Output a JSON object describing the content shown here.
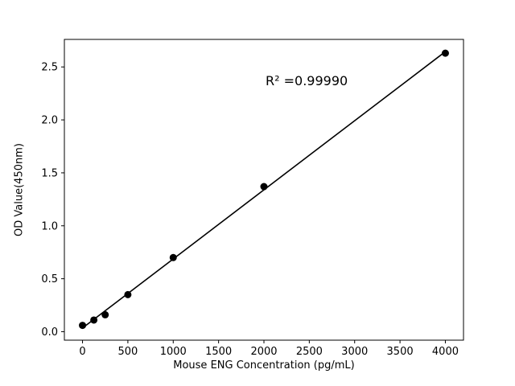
{
  "chart_data": {
    "type": "scatter",
    "x": [
      0,
      125,
      250,
      500,
      1000,
      2000,
      4000
    ],
    "y": [
      0.06,
      0.11,
      0.16,
      0.35,
      0.7,
      1.37,
      2.63
    ],
    "fit_line": true,
    "annotation": "R² =0.99990",
    "xlabel": "Mouse ENG Concentration (pg/mL)",
    "ylabel": "OD Value(450nm)",
    "xlim": [
      -200,
      4200
    ],
    "ylim": [
      -0.08,
      2.76
    ],
    "xticks": [
      0,
      500,
      1000,
      1500,
      2000,
      2500,
      3000,
      3500,
      4000
    ],
    "yticks": [
      0.0,
      0.5,
      1.0,
      1.5,
      2.0,
      2.5
    ],
    "grid": false,
    "legend": "none",
    "point_color": "#000000",
    "line_color": "#000000",
    "background_color": "#ffffff"
  }
}
